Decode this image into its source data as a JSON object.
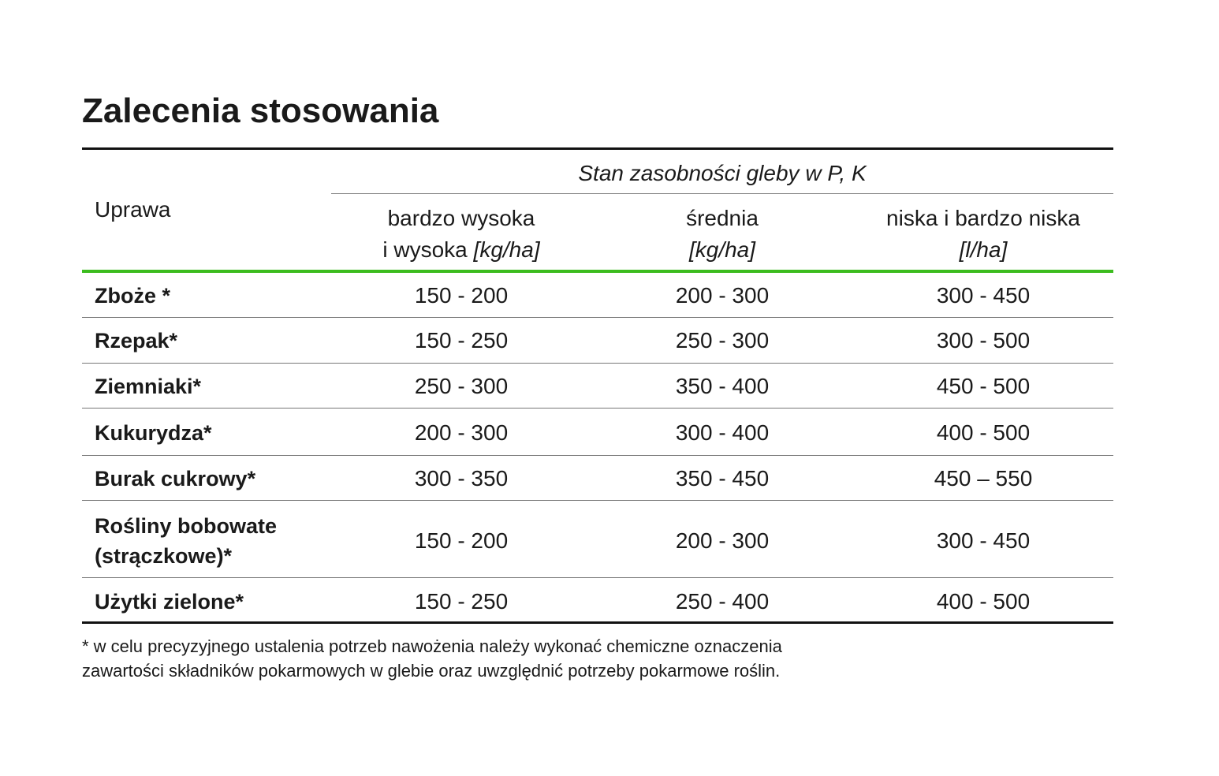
{
  "title": "Zalecenia stosowania",
  "table": {
    "row_header": "Uprawa",
    "group_header": "Stan zasobności gleby w P, K",
    "columns": [
      {
        "line1": "bardzo wysoka",
        "line2": "i wysoka",
        "unit": "[kg/ha]"
      },
      {
        "line1": "średnia",
        "unit": "[kg/ha]"
      },
      {
        "line1": "niska i bardzo niska",
        "unit": "[l/ha]"
      }
    ],
    "rows": [
      {
        "crop": [
          "Zboże *"
        ],
        "values": [
          "150 - 200",
          "200 - 300",
          "300 - 450"
        ]
      },
      {
        "crop": [
          "Rzepak*"
        ],
        "values": [
          "150 - 250",
          "250 - 300",
          "300 - 500"
        ]
      },
      {
        "crop": [
          "Ziemniaki*"
        ],
        "values": [
          "250 - 300",
          "350 - 400",
          "450 - 500"
        ]
      },
      {
        "crop": [
          "Kukurydza*"
        ],
        "values": [
          "200 - 300",
          "300 - 400",
          "400 - 500"
        ]
      },
      {
        "crop": [
          "Burak cukrowy*"
        ],
        "values": [
          "300 - 350",
          "350 - 450",
          "450 – 550"
        ]
      },
      {
        "crop": [
          "Rośliny bobowate",
          "(strączkowe)*"
        ],
        "values": [
          "150 - 200",
          "200 - 300",
          "300 - 450"
        ]
      },
      {
        "crop": [
          "Użytki zielone*"
        ],
        "values": [
          "150 - 250",
          "250 - 400",
          "400 - 500"
        ]
      }
    ]
  },
  "footnote": [
    "* w celu precyzyjnego ustalenia potrzeb nawożenia należy wykonać chemiczne oznaczenia",
    "zawartości składników pokarmowych w glebie oraz uwzględnić potrzeby pokarmowe roślin."
  ]
}
